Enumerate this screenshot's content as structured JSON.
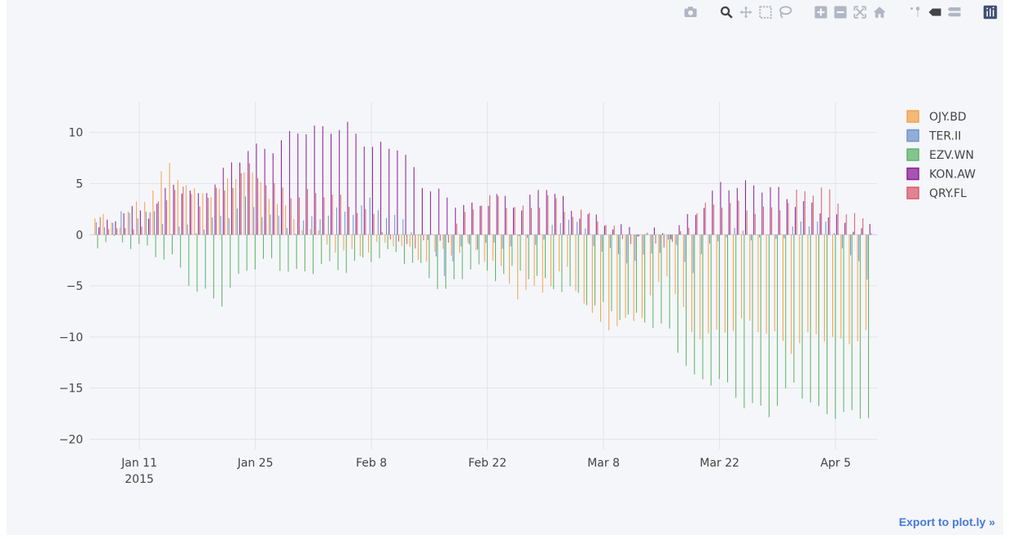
{
  "modebar": {
    "groups": [
      [
        "camera-icon"
      ],
      [
        "zoom-icon",
        "pan-icon",
        "box-select-icon",
        "lasso-icon"
      ],
      [
        "zoom-in-icon",
        "zoom-out-icon",
        "autoscale-icon",
        "reset-axes-icon"
      ],
      [
        "spike-lines-icon",
        "hover-closest-icon",
        "hover-compare-icon"
      ],
      [
        "plotly-logo-icon"
      ]
    ]
  },
  "export_link": "Export to plot.ly »",
  "colors": {
    "OJY.BD": "#f3a34d",
    "TER.II": "#6f95cd",
    "EZV.WN": "#5db46a",
    "KON.AW": "#8c1f97",
    "QRY.FL": "#d95d6d",
    "grid": "#e2e4eb",
    "text": "#444444"
  },
  "chart_data": {
    "type": "bar",
    "barmode": "group",
    "title": "",
    "xlabel": "",
    "ylabel": "",
    "x_start": "2015-01-06",
    "x_end": "2015-04-09",
    "xlim": [
      "2015-01-05",
      "2015-04-10"
    ],
    "ylim": [
      -21,
      13
    ],
    "grid": true,
    "legend_position": "top-right",
    "y_ticks": [
      "10",
      "5",
      "0",
      "−5",
      "−10",
      "−15",
      "−20"
    ],
    "y_tick_values": [
      10,
      5,
      0,
      -5,
      -10,
      -15,
      -20
    ],
    "x_ticks": [
      {
        "date": "2015-01-11",
        "label": "Jan 11",
        "sublabel": "2015"
      },
      {
        "date": "2015-01-25",
        "label": "Jan 25",
        "sublabel": ""
      },
      {
        "date": "2015-02-08",
        "label": "Feb 8",
        "sublabel": ""
      },
      {
        "date": "2015-02-22",
        "label": "Feb 22",
        "sublabel": ""
      },
      {
        "date": "2015-03-08",
        "label": "Mar 8",
        "sublabel": ""
      },
      {
        "date": "2015-03-22",
        "label": "Mar 22",
        "sublabel": ""
      },
      {
        "date": "2015-04-05",
        "label": "Apr 5",
        "sublabel": ""
      }
    ],
    "series": [
      {
        "name": "OJY.BD",
        "anchors": [
          [
            0,
            1.6
          ],
          [
            3,
            1.2
          ],
          [
            6,
            3.6
          ],
          [
            9,
            6.8
          ],
          [
            12,
            4.0
          ],
          [
            15,
            4.3
          ],
          [
            18,
            6.5
          ],
          [
            21,
            4.0
          ],
          [
            24,
            1.5
          ],
          [
            27,
            -0.1
          ],
          [
            30,
            -1.9
          ],
          [
            33,
            -1.5
          ],
          [
            36,
            -0.6
          ],
          [
            39,
            -2.3
          ],
          [
            42,
            -1.8
          ],
          [
            45,
            -1.3
          ],
          [
            48,
            -2.5
          ],
          [
            51,
            -5.8
          ],
          [
            54,
            -5.3
          ],
          [
            57,
            -3.4
          ],
          [
            60,
            -8.2
          ],
          [
            63,
            -9.1
          ],
          [
            66,
            -7.7
          ],
          [
            69,
            -3.6
          ],
          [
            72,
            -9.6
          ],
          [
            75,
            -9.8
          ],
          [
            78,
            -8.5
          ],
          [
            81,
            -9.4
          ],
          [
            84,
            -11.1
          ],
          [
            87,
            -9.6
          ],
          [
            90,
            -10.6
          ],
          [
            93,
            -9.8
          ]
        ]
      },
      {
        "name": "TER.II",
        "anchors": [
          [
            0,
            0.8
          ],
          [
            3,
            1.8
          ],
          [
            6,
            2.3
          ],
          [
            9,
            0.6
          ],
          [
            12,
            0.5
          ],
          [
            15,
            1.6
          ],
          [
            18,
            3.2
          ],
          [
            21,
            1.8
          ],
          [
            24,
            0.5
          ],
          [
            27,
            2.0
          ],
          [
            30,
            2.2
          ],
          [
            33,
            3.1
          ],
          [
            36,
            1.6
          ],
          [
            39,
            0.2
          ],
          [
            42,
            -3.5
          ],
          [
            45,
            -0.8
          ],
          [
            48,
            -1.2
          ],
          [
            51,
            -0.6
          ],
          [
            54,
            -0.4
          ],
          [
            57,
            2.0
          ],
          [
            60,
            -0.8
          ],
          [
            63,
            -2.2
          ],
          [
            66,
            -2.5
          ],
          [
            69,
            -0.6
          ],
          [
            72,
            -3.3
          ],
          [
            75,
            -0.2
          ],
          [
            78,
            0.3
          ],
          [
            81,
            -0.6
          ],
          [
            84,
            0.5
          ],
          [
            87,
            1.6
          ],
          [
            90,
            -0.8
          ],
          [
            93,
            -4.3
          ]
        ]
      },
      {
        "name": "EZV.WN",
        "anchors": [
          [
            0,
            -0.8
          ],
          [
            3,
            -0.6
          ],
          [
            6,
            -1.5
          ],
          [
            9,
            -2.4
          ],
          [
            12,
            -5.5
          ],
          [
            15,
            -6.5
          ],
          [
            18,
            -3.2
          ],
          [
            21,
            -2.6
          ],
          [
            24,
            -3.9
          ],
          [
            27,
            -3.0
          ],
          [
            30,
            -3.3
          ],
          [
            33,
            -2.2
          ],
          [
            36,
            -1.8
          ],
          [
            39,
            -3.3
          ],
          [
            42,
            -5.6
          ],
          [
            45,
            -3.1
          ],
          [
            48,
            -4.0
          ],
          [
            51,
            -3.4
          ],
          [
            54,
            -4.7
          ],
          [
            57,
            -5.5
          ],
          [
            60,
            -6.8
          ],
          [
            63,
            -7.8
          ],
          [
            66,
            -8.3
          ],
          [
            69,
            -9.5
          ],
          [
            72,
            -14.2
          ],
          [
            75,
            -14.2
          ],
          [
            78,
            -16.5
          ],
          [
            81,
            -17.4
          ],
          [
            84,
            -14.6
          ],
          [
            87,
            -17.3
          ],
          [
            90,
            -17.6
          ],
          [
            93,
            -17.6
          ]
        ]
      },
      {
        "name": "KON.AW",
        "anchors": [
          [
            0,
            0.4
          ],
          [
            3,
            2.4
          ],
          [
            6,
            2.1
          ],
          [
            9,
            5.0
          ],
          [
            12,
            3.6
          ],
          [
            15,
            6.1
          ],
          [
            18,
            8.3
          ],
          [
            21,
            8.5
          ],
          [
            24,
            10.2
          ],
          [
            27,
            10.3
          ],
          [
            30,
            10.5
          ],
          [
            33,
            8.5
          ],
          [
            36,
            8.7
          ],
          [
            39,
            5.0
          ],
          [
            42,
            3.5
          ],
          [
            45,
            2.6
          ],
          [
            48,
            3.7
          ],
          [
            51,
            2.7
          ],
          [
            54,
            4.9
          ],
          [
            57,
            2.4
          ],
          [
            60,
            1.5
          ],
          [
            63,
            0.6
          ],
          [
            66,
            0.2
          ],
          [
            69,
            0.1
          ],
          [
            72,
            2.2
          ],
          [
            75,
            4.8
          ],
          [
            78,
            4.8
          ],
          [
            81,
            4.6
          ],
          [
            84,
            3.2
          ],
          [
            87,
            2.5
          ],
          [
            90,
            1.0
          ],
          [
            93,
            0.5
          ]
        ]
      },
      {
        "name": "QRY.FL",
        "anchors": [
          [
            0,
            1.6
          ],
          [
            3,
            0.1
          ],
          [
            6,
            1.9
          ],
          [
            9,
            4.7
          ],
          [
            12,
            3.3
          ],
          [
            15,
            4.4
          ],
          [
            18,
            6.5
          ],
          [
            21,
            4.6
          ],
          [
            24,
            3.8
          ],
          [
            27,
            4.2
          ],
          [
            30,
            3.0
          ],
          [
            33,
            1.7
          ],
          [
            36,
            -1.2
          ],
          [
            39,
            -0.6
          ],
          [
            42,
            -0.3
          ],
          [
            45,
            2.9
          ],
          [
            48,
            3.6
          ],
          [
            51,
            2.3
          ],
          [
            54,
            3.6
          ],
          [
            57,
            2.1
          ],
          [
            60,
            1.8
          ],
          [
            63,
            -0.4
          ],
          [
            66,
            -0.3
          ],
          [
            69,
            -1.1
          ],
          [
            72,
            2.3
          ],
          [
            75,
            3.2
          ],
          [
            78,
            2.6
          ],
          [
            81,
            2.3
          ],
          [
            84,
            3.9
          ],
          [
            87,
            4.6
          ],
          [
            90,
            2.5
          ],
          [
            93,
            0.5
          ]
        ]
      }
    ]
  }
}
